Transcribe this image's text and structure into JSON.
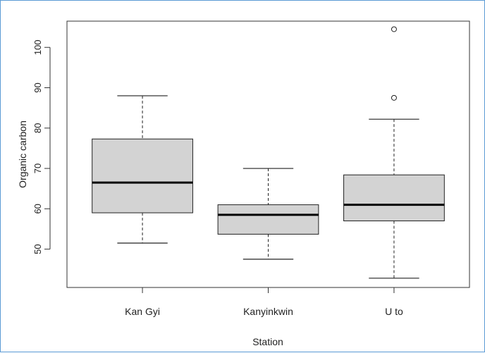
{
  "chart_data": {
    "type": "boxplot",
    "xlabel": "Station",
    "ylabel": "Organic carbon",
    "ylim": [
      40.5,
      106.5
    ],
    "yticks": [
      50,
      60,
      70,
      80,
      90,
      100
    ],
    "categories": [
      "Kan Gyi",
      "Kanyinkwin",
      "U to"
    ],
    "boxes": [
      {
        "category": "Kan Gyi",
        "whisker_low": 51.5,
        "q1": 59.0,
        "median": 66.5,
        "q3": 77.3,
        "whisker_high": 88.0,
        "outliers": []
      },
      {
        "category": "Kanyinkwin",
        "whisker_low": 47.5,
        "q1": 53.7,
        "median": 58.5,
        "q3": 61.0,
        "whisker_high": 70.0,
        "outliers": []
      },
      {
        "category": "U to",
        "whisker_low": 42.8,
        "q1": 57.0,
        "median": 61.0,
        "q3": 68.4,
        "whisker_high": 82.2,
        "outliers": [
          87.5,
          104.5
        ]
      }
    ],
    "box_fill": "#d3d3d3",
    "grid": false,
    "legend": "none"
  }
}
